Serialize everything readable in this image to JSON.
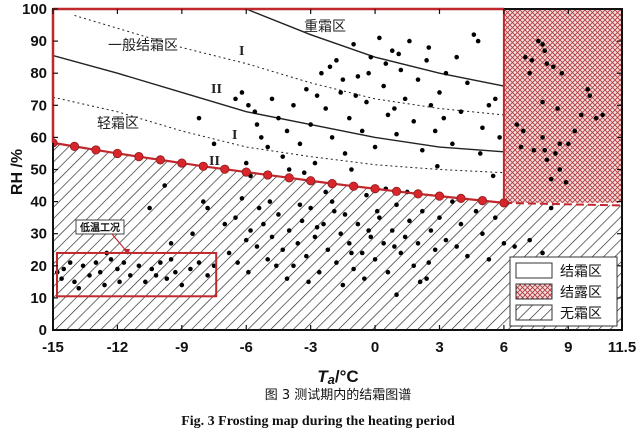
{
  "chart_data": {
    "type": "scatter",
    "xlabel_main": "T",
    "xlabel_sub": "a",
    "xlabel_unit": "/°C",
    "ylabel": "RH /%",
    "xlim": [
      -15,
      11.5
    ],
    "ylim": [
      0,
      100
    ],
    "x_ticks": [
      "-15",
      "-12",
      "-9",
      "-6",
      "-3",
      "0",
      "3",
      "6",
      "9",
      "11.5"
    ],
    "x_tick_values": [
      -15,
      -12,
      -9,
      -6,
      -3,
      0,
      3,
      6,
      9,
      11.5
    ],
    "y_ticks": [
      "0",
      "10",
      "20",
      "30",
      "40",
      "50",
      "60",
      "70",
      "80",
      "90",
      "100"
    ],
    "y_tick_values": [
      0,
      10,
      20,
      30,
      40,
      50,
      60,
      70,
      80,
      90,
      100
    ],
    "grid": false,
    "colors": {
      "boundary": "#c0282d",
      "dew_fill": "#e9c3c3",
      "points": "#000000",
      "hatch": "#222222"
    },
    "frost_boundary": {
      "x": [
        -15,
        -14,
        -13,
        -12,
        -11,
        -10,
        -9,
        -8,
        -7,
        -6,
        -5,
        -4,
        -3,
        -2,
        -1,
        0,
        1,
        2,
        3,
        4,
        5,
        6
      ],
      "y": [
        58.3,
        57.2,
        56.1,
        55.0,
        54.0,
        53.0,
        52.0,
        51.0,
        50.1,
        49.2,
        48.3,
        47.4,
        46.5,
        45.6,
        44.8,
        44.0,
        43.2,
        42.4,
        41.7,
        41.0,
        40.3,
        39.6
      ],
      "extension_dashed": {
        "x": [
          6,
          11.5
        ],
        "y": [
          39.6,
          38.8
        ]
      }
    },
    "dew_region_xmin": 6,
    "curves": [
      {
        "style": "solid",
        "x": [
          -6,
          -3,
          0,
          3,
          6
        ],
        "y": [
          100,
          92,
          85,
          80,
          76
        ]
      },
      {
        "style": "dotted",
        "x": [
          -14,
          -9,
          -6,
          -3,
          0,
          3,
          6
        ],
        "y": [
          98,
          88,
          83,
          77,
          72,
          69,
          67
        ]
      },
      {
        "style": "solid",
        "x": [
          -15,
          -12,
          -9,
          -6,
          -3,
          0,
          3,
          6
        ],
        "y": [
          85.5,
          80,
          74,
          68,
          64,
          60,
          57,
          55.5
        ]
      },
      {
        "style": "dotted",
        "x": [
          -15,
          -12,
          -9,
          -6,
          -3,
          0,
          3,
          6
        ],
        "y": [
          72.5,
          68,
          62,
          57,
          54,
          51.5,
          50,
          49
        ]
      }
    ],
    "annotations": {
      "heavy_frost": "重霜区",
      "general_frost": "一般结霜区",
      "light_frost": "轻霜区",
      "roman_1a": "I",
      "roman_2a": "II",
      "roman_1b": "I",
      "roman_2b": "II",
      "low_temp": "低温工况"
    },
    "low_temp_box": {
      "x": [
        -15,
        -7.4
      ],
      "y": [
        10.5,
        24
      ]
    },
    "legend": {
      "position": "bottom-right",
      "items": [
        {
          "label": "结霜区",
          "fill": "white"
        },
        {
          "label": "结露区",
          "fill": "crosshatch-red"
        },
        {
          "label": "无霜区",
          "fill": "diagonal-hatch"
        }
      ]
    },
    "points": [
      [
        -7,
        33
      ],
      [
        -6.5,
        35
      ],
      [
        -6,
        28
      ],
      [
        -5.8,
        31
      ],
      [
        -5.5,
        26
      ],
      [
        -5.2,
        33
      ],
      [
        -5,
        22
      ],
      [
        -4.8,
        29
      ],
      [
        -4.5,
        36
      ],
      [
        -4.3,
        25
      ],
      [
        -4,
        31
      ],
      [
        -3.8,
        20
      ],
      [
        -3.6,
        27
      ],
      [
        -3.4,
        34
      ],
      [
        -3.2,
        23
      ],
      [
        -3,
        38
      ],
      [
        -2.8,
        29
      ],
      [
        -2.6,
        18
      ],
      [
        -2.4,
        33
      ],
      [
        -2.2,
        25
      ],
      [
        -2,
        40
      ],
      [
        -1.8,
        21
      ],
      [
        -1.6,
        30
      ],
      [
        -1.4,
        36
      ],
      [
        -1.2,
        27
      ],
      [
        -1,
        19
      ],
      [
        -0.8,
        33
      ],
      [
        -0.6,
        24
      ],
      [
        -0.4,
        42
      ],
      [
        -0.2,
        29
      ],
      [
        0,
        22
      ],
      [
        0.2,
        35
      ],
      [
        0.4,
        27
      ],
      [
        0.6,
        18
      ],
      [
        0.8,
        31
      ],
      [
        1,
        39
      ],
      [
        1.2,
        24
      ],
      [
        1.4,
        29
      ],
      [
        1.6,
        34
      ],
      [
        1.8,
        20
      ],
      [
        2,
        27
      ],
      [
        2.2,
        37
      ],
      [
        2.4,
        16
      ],
      [
        2.6,
        31
      ],
      [
        2.8,
        25
      ],
      [
        3,
        35
      ],
      [
        3.3,
        28
      ],
      [
        3.6,
        40
      ],
      [
        4,
        33
      ],
      [
        4.3,
        23
      ],
      [
        4.7,
        37
      ],
      [
        5,
        30
      ],
      [
        5.3,
        22
      ],
      [
        5.6,
        35
      ],
      [
        6,
        27
      ],
      [
        6.5,
        26
      ],
      [
        7.2,
        28
      ],
      [
        7.8,
        24
      ],
      [
        8.2,
        38
      ],
      [
        -8,
        40
      ],
      [
        -7.5,
        20
      ],
      [
        -6.8,
        24
      ],
      [
        -6.2,
        41
      ],
      [
        -5.9,
        18
      ],
      [
        -4.9,
        40
      ],
      [
        -4.1,
        16
      ],
      [
        -3.1,
        15
      ],
      [
        -2.3,
        43
      ],
      [
        -1.5,
        14
      ],
      [
        -0.5,
        16
      ],
      [
        0.5,
        44
      ],
      [
        1.5,
        43
      ],
      [
        2.1,
        15
      ],
      [
        1.0,
        11
      ],
      [
        -1.9,
        37
      ],
      [
        -2.7,
        32
      ],
      [
        -3.5,
        39
      ],
      [
        0.1,
        37
      ],
      [
        0.9,
        26
      ],
      [
        -0.3,
        31
      ],
      [
        -1.1,
        24
      ],
      [
        2.5,
        21
      ],
      [
        3.8,
        26
      ],
      [
        -4.6,
        20
      ],
      [
        -5.4,
        38
      ],
      [
        -6.4,
        21
      ],
      [
        -14.8,
        18
      ],
      [
        -14.5,
        19
      ],
      [
        -14.2,
        21
      ],
      [
        -14,
        15
      ],
      [
        -13.6,
        20
      ],
      [
        -13.3,
        17
      ],
      [
        -13,
        21
      ],
      [
        -12.6,
        14
      ],
      [
        -12.3,
        22
      ],
      [
        -12,
        19
      ],
      [
        -11.7,
        21
      ],
      [
        -11.4,
        17
      ],
      [
        -11,
        20
      ],
      [
        -10.7,
        15
      ],
      [
        -10.4,
        19
      ],
      [
        -10,
        21
      ],
      [
        -9.7,
        16
      ],
      [
        -9.3,
        18
      ],
      [
        -9,
        14
      ],
      [
        -8.6,
        19
      ],
      [
        -8.2,
        21
      ],
      [
        -7.8,
        17
      ],
      [
        -13.8,
        13
      ],
      [
        -11.9,
        15
      ],
      [
        -10.2,
        17
      ],
      [
        -12.8,
        18
      ],
      [
        -9.5,
        22
      ],
      [
        -14.6,
        16
      ],
      [
        -9.5,
        27
      ],
      [
        -10.5,
        38
      ],
      [
        -8.5,
        30
      ],
      [
        -9.8,
        45
      ],
      [
        -7.8,
        38
      ],
      [
        -12.5,
        24
      ],
      [
        -6.5,
        72
      ],
      [
        -6.2,
        74
      ],
      [
        -5.9,
        70
      ],
      [
        -5.6,
        68
      ],
      [
        -5.5,
        64
      ],
      [
        -5.3,
        60
      ],
      [
        -5,
        57
      ],
      [
        -4.8,
        72
      ],
      [
        -4.5,
        66
      ],
      [
        -4.3,
        54
      ],
      [
        -4.1,
        62
      ],
      [
        -3.8,
        70
      ],
      [
        -3.5,
        58
      ],
      [
        -3.2,
        75
      ],
      [
        -3,
        64
      ],
      [
        -2.8,
        52
      ],
      [
        -2.5,
        80
      ],
      [
        -2.3,
        69
      ],
      [
        -2,
        60
      ],
      [
        -1.8,
        84
      ],
      [
        -1.6,
        74
      ],
      [
        -1.4,
        55
      ],
      [
        -1.2,
        66
      ],
      [
        -1,
        89
      ],
      [
        -0.8,
        79
      ],
      [
        -0.6,
        62
      ],
      [
        -0.4,
        71
      ],
      [
        -0.2,
        85
      ],
      [
        0,
        57
      ],
      [
        0.2,
        91
      ],
      [
        0.4,
        76
      ],
      [
        0.6,
        67
      ],
      [
        0.8,
        87
      ],
      [
        1,
        61
      ],
      [
        1.2,
        81
      ],
      [
        1.4,
        72
      ],
      [
        1.6,
        90
      ],
      [
        1.8,
        65
      ],
      [
        2,
        78
      ],
      [
        2.2,
        56
      ],
      [
        2.4,
        84
      ],
      [
        2.6,
        70
      ],
      [
        2.8,
        62
      ],
      [
        3,
        74
      ],
      [
        3.3,
        80
      ],
      [
        3.6,
        58
      ],
      [
        4,
        68
      ],
      [
        4.3,
        77
      ],
      [
        4.6,
        92
      ],
      [
        4.8,
        90
      ],
      [
        5,
        63
      ],
      [
        5.3,
        70
      ],
      [
        5.6,
        72
      ],
      [
        5.8,
        60
      ],
      [
        -2.1,
        82
      ],
      [
        -0.3,
        80
      ],
      [
        0.5,
        83
      ],
      [
        -1.5,
        78
      ],
      [
        1.1,
        86
      ],
      [
        -2.7,
        73
      ],
      [
        -4.0,
        50
      ],
      [
        -5.8,
        48
      ],
      [
        -3.3,
        49
      ],
      [
        3.8,
        85
      ],
      [
        2.5,
        88
      ],
      [
        -0.9,
        73
      ],
      [
        0.9,
        69
      ],
      [
        3.2,
        66
      ],
      [
        4.9,
        55
      ],
      [
        5.5,
        48
      ],
      [
        -7.5,
        58
      ],
      [
        -8.2,
        66
      ],
      [
        -6,
        52
      ],
      [
        -1.1,
        50
      ],
      [
        2.9,
        51
      ],
      [
        7.6,
        90
      ],
      [
        7.8,
        89
      ],
      [
        7.9,
        87
      ],
      [
        7.0,
        85
      ],
      [
        7.3,
        84
      ],
      [
        8.0,
        83
      ],
      [
        8.3,
        82
      ],
      [
        7.2,
        80
      ],
      [
        8.7,
        80
      ],
      [
        9.9,
        75
      ],
      [
        10.0,
        73
      ],
      [
        7.8,
        71
      ],
      [
        8.5,
        69
      ],
      [
        9.6,
        67
      ],
      [
        10.3,
        66
      ],
      [
        10.6,
        67
      ],
      [
        6.6,
        64
      ],
      [
        6.9,
        62
      ],
      [
        7.8,
        60
      ],
      [
        8.6,
        58
      ],
      [
        7.4,
        56
      ],
      [
        7.9,
        56
      ],
      [
        8.4,
        55
      ],
      [
        9.3,
        62
      ],
      [
        8.0,
        53
      ],
      [
        8.6,
        50
      ],
      [
        8.2,
        47
      ],
      [
        8.9,
        46
      ],
      [
        6.8,
        57
      ],
      [
        9.0,
        58
      ]
    ]
  },
  "caption_cn": "图 3 测试期内的结霜图谱",
  "caption_en": "Fig. 3 Frosting map during the heating period"
}
